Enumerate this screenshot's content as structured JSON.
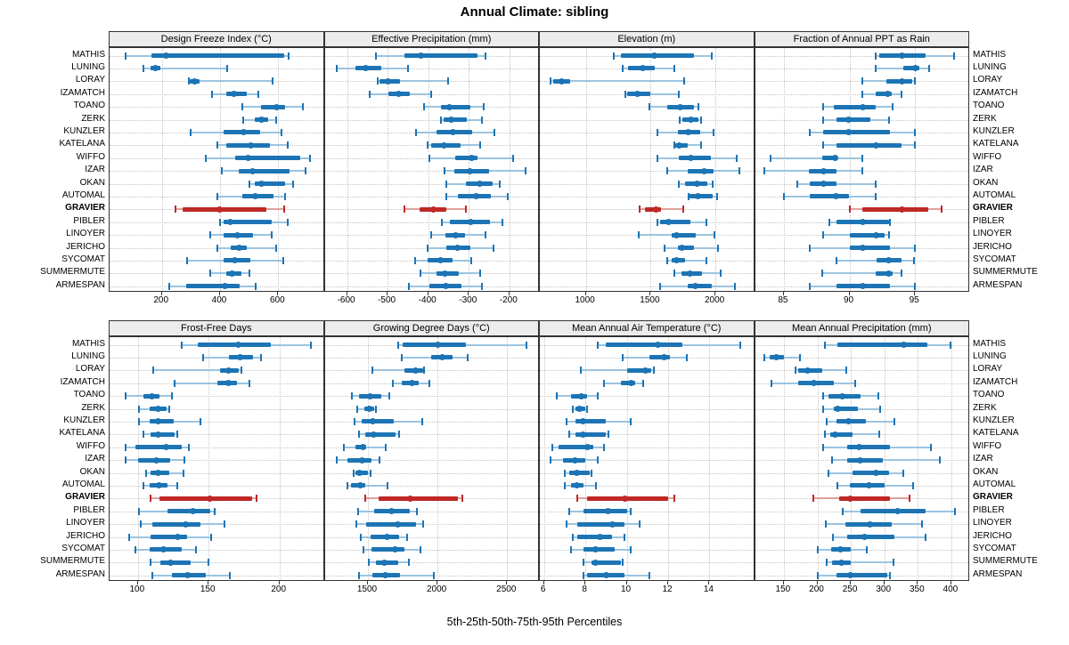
{
  "title": "Annual Climate: sibling",
  "caption": "5th-25th-50th-75th-95th Percentiles",
  "percentiles": [
    "5th",
    "25th",
    "50th",
    "75th",
    "95th"
  ],
  "stations": [
    "MATHIS",
    "LUNING",
    "LORAY",
    "IZAMATCH",
    "TOANO",
    "ZERK",
    "KUNZLER",
    "KATELANA",
    "WIFFO",
    "IZAR",
    "OKAN",
    "AUTOMAL",
    "GRAVIER",
    "PIBLER",
    "LINOYER",
    "JERICHO",
    "SYCOMAT",
    "SUMMERMUTE",
    "ARMESPAN"
  ],
  "highlight_station": "GRAVIER",
  "colors": {
    "series": "#1c74b4",
    "series_light": "#9cc4e0",
    "highlight": "#bf2826",
    "highlight_light": "#dfa09d",
    "grid": "#c4c4c4",
    "strip_bg": "#ececec",
    "border": "#333333"
  },
  "chart_data": [
    {
      "type": "dot-interval",
      "row": "top",
      "title": "Design Freeze Index (°C)",
      "ticks": [
        200,
        400,
        600
      ],
      "xlim": [
        20,
        760
      ],
      "values": [
        [
          75,
          165,
          215,
          620,
          635
        ],
        [
          135,
          160,
          178,
          195,
          425
        ],
        [
          293,
          297,
          311,
          331,
          580
        ],
        [
          372,
          420,
          446,
          491,
          531
        ],
        [
          475,
          542,
          594,
          624,
          685
        ],
        [
          478,
          518,
          542,
          564,
          594
        ],
        [
          298,
          412,
          481,
          538,
          612
        ],
        [
          392,
          422,
          505,
          572,
          632
        ],
        [
          352,
          451,
          496,
          675,
          710
        ],
        [
          407,
          463,
          513,
          640,
          693
        ],
        [
          500,
          518,
          543,
          624,
          651
        ],
        [
          392,
          475,
          520,
          584,
          622
        ],
        [
          248,
          271,
          397,
          558,
          621
        ],
        [
          400,
          412,
          435,
          579,
          632
        ],
        [
          365,
          412,
          460,
          513,
          577
        ],
        [
          390,
          437,
          466,
          493,
          594
        ],
        [
          286,
          412,
          451,
          503,
          616
        ],
        [
          367,
          422,
          442,
          473,
          501
        ],
        [
          225,
          283,
          417,
          468,
          523
        ]
      ]
    },
    {
      "type": "dot-interval",
      "row": "top",
      "title": "Effective Precipitation (mm)",
      "ticks": [
        -600,
        -500,
        -400,
        -300,
        -200
      ],
      "xlim": [
        -655,
        -125
      ],
      "values": [
        [
          -530,
          -458,
          -418,
          -278,
          -259
        ],
        [
          -625,
          -580,
          -555,
          -515,
          -450
        ],
        [
          -525,
          -521,
          -500,
          -470,
          -351
        ],
        [
          -545,
          -498,
          -473,
          -445,
          -393
        ],
        [
          -411,
          -369,
          -347,
          -295,
          -263
        ],
        [
          -369,
          -362,
          -343,
          -306,
          -267
        ],
        [
          -431,
          -380,
          -340,
          -291,
          -236
        ],
        [
          -402,
          -393,
          -360,
          -320,
          -273
        ],
        [
          -397,
          -333,
          -293,
          -278,
          -191
        ],
        [
          -360,
          -336,
          -298,
          -249,
          -160
        ],
        [
          -356,
          -307,
          -273,
          -242,
          -224
        ],
        [
          -356,
          -327,
          -282,
          -247,
          -204
        ],
        [
          -458,
          -422,
          -387,
          -356,
          -307
        ],
        [
          -367,
          -347,
          -296,
          -247,
          -218
        ],
        [
          -393,
          -358,
          -333,
          -309,
          -260
        ],
        [
          -402,
          -356,
          -329,
          -295,
          -240
        ],
        [
          -433,
          -402,
          -369,
          -340,
          -295
        ],
        [
          -420,
          -380,
          -358,
          -324,
          -273
        ],
        [
          -447,
          -398,
          -356,
          -317,
          -267
        ]
      ]
    },
    {
      "type": "dot-interval",
      "row": "top",
      "title": "Elevation (m)",
      "ticks": [
        1000,
        1500,
        2000
      ],
      "xlim": [
        645,
        2305
      ],
      "values": [
        [
          1215,
          1270,
          1525,
          1835,
          1970
        ],
        [
          1285,
          1325,
          1440,
          1535,
          1685
        ],
        [
          725,
          745,
          815,
          880,
          1760
        ],
        [
          1305,
          1320,
          1395,
          1495,
          1715
        ],
        [
          1490,
          1625,
          1730,
          1835,
          1865
        ],
        [
          1725,
          1745,
          1810,
          1870,
          1890
        ],
        [
          1555,
          1710,
          1790,
          1880,
          1985
        ],
        [
          1685,
          1690,
          1720,
          1785,
          1890
        ],
        [
          1555,
          1715,
          1810,
          1965,
          2165
        ],
        [
          1630,
          1785,
          1910,
          1985,
          2185
        ],
        [
          1715,
          1765,
          1855,
          1940,
          1975
        ],
        [
          1790,
          1800,
          1865,
          1975,
          2015
        ],
        [
          1412,
          1455,
          1540,
          1580,
          1750
        ],
        [
          1550,
          1575,
          1640,
          1810,
          1930
        ],
        [
          1410,
          1660,
          1700,
          1850,
          1990
        ],
        [
          1605,
          1710,
          1740,
          1835,
          2020
        ],
        [
          1625,
          1660,
          1700,
          1765,
          1930
        ],
        [
          1680,
          1740,
          1800,
          1895,
          2040
        ],
        [
          1575,
          1785,
          1845,
          1970,
          2150
        ]
      ]
    },
    {
      "type": "dot-interval",
      "row": "top",
      "title": "Fraction of Annual PPT as Rain",
      "ticks": [
        85,
        90,
        95
      ],
      "xlim": [
        82.8,
        99.2
      ],
      "values": [
        [
          92,
          92.3,
          94,
          95.8,
          98
        ],
        [
          92,
          94.1,
          95,
          95.3,
          96.1
        ],
        [
          91,
          92.8,
          94,
          94.8,
          95
        ],
        [
          91,
          92,
          92.9,
          93.2,
          94
        ],
        [
          88,
          88.8,
          91,
          92,
          93.3
        ],
        [
          88,
          89,
          89.9,
          91.6,
          93
        ],
        [
          87,
          88,
          89.9,
          93.1,
          95
        ],
        [
          88,
          89,
          92,
          94,
          95
        ],
        [
          84,
          87.9,
          88.9,
          89.1,
          91
        ],
        [
          83.5,
          86.9,
          88,
          89,
          91
        ],
        [
          86,
          87,
          88,
          89,
          92
        ],
        [
          85,
          87,
          89,
          90,
          92
        ],
        [
          90,
          91,
          94,
          96,
          97
        ],
        [
          88.5,
          89,
          91,
          93,
          93.1
        ],
        [
          88,
          90,
          92,
          92.7,
          93
        ],
        [
          87,
          90,
          91,
          93.1,
          95
        ],
        [
          89,
          92.1,
          93,
          94,
          94.9
        ],
        [
          87.9,
          92,
          93,
          93.3,
          94
        ],
        [
          87,
          89,
          91,
          93.1,
          95
        ]
      ]
    },
    {
      "type": "dot-interval",
      "row": "bottom",
      "title": "Frost-Free Days",
      "ticks": [
        100,
        150,
        200
      ],
      "xlim": [
        80,
        232
      ],
      "values": [
        [
          131,
          142,
          171,
          194,
          222
        ],
        [
          146,
          164,
          172,
          181,
          187
        ],
        [
          111,
          158,
          164,
          171,
          173
        ],
        [
          126,
          156,
          164,
          170,
          179
        ],
        [
          91,
          104,
          110,
          115,
          124
        ],
        [
          101,
          108,
          114,
          120,
          122
        ],
        [
          101,
          108,
          114,
          125,
          144
        ],
        [
          104,
          109,
          114,
          126,
          128
        ],
        [
          91,
          98,
          120,
          131,
          136
        ],
        [
          91,
          100,
          113,
          123,
          133
        ],
        [
          106,
          109,
          114,
          122,
          132
        ],
        [
          104,
          108,
          115,
          121,
          128
        ],
        [
          109,
          115,
          151,
          181,
          184
        ],
        [
          101,
          121,
          139,
          151,
          154
        ],
        [
          102,
          110,
          134,
          144,
          161
        ],
        [
          94,
          109,
          128,
          135,
          152
        ],
        [
          98,
          108,
          118,
          131,
          141
        ],
        [
          109,
          116,
          123,
          137,
          150
        ],
        [
          110,
          124,
          135,
          148,
          165
        ]
      ]
    },
    {
      "type": "dot-interval",
      "row": "bottom",
      "title": "Growing Degree Days (°C)",
      "ticks": [
        1500,
        2000,
        2500
      ],
      "xlim": [
        1190,
        2735
      ],
      "values": [
        [
          1716,
          1749,
          2004,
          2203,
          2636
        ],
        [
          1742,
          1955,
          2034,
          2106,
          2214
        ],
        [
          1532,
          1760,
          1840,
          1895,
          1905
        ],
        [
          1677,
          1742,
          1814,
          1868,
          1944
        ],
        [
          1388,
          1435,
          1518,
          1597,
          1651
        ],
        [
          1424,
          1474,
          1511,
          1545,
          1555
        ],
        [
          1403,
          1457,
          1537,
          1684,
          1890
        ],
        [
          1435,
          1478,
          1544,
          1700,
          1723
        ],
        [
          1327,
          1409,
          1463,
          1485,
          1630
        ],
        [
          1273,
          1353,
          1457,
          1526,
          1586
        ],
        [
          1396,
          1409,
          1440,
          1500,
          1521
        ],
        [
          1353,
          1381,
          1446,
          1478,
          1641
        ],
        [
          1478,
          1576,
          1803,
          2149,
          2175
        ],
        [
          1431,
          1547,
          1669,
          1803,
          1851
        ],
        [
          1418,
          1489,
          1716,
          1846,
          1894
        ],
        [
          1446,
          1521,
          1636,
          1727,
          1781
        ],
        [
          1468,
          1526,
          1695,
          1764,
          1879
        ],
        [
          1505,
          1560,
          1619,
          1716,
          1797
        ],
        [
          1435,
          1532,
          1625,
          1727,
          1972
        ]
      ]
    },
    {
      "type": "dot-interval",
      "row": "bottom",
      "title": "Mean Annual Air Temperature (°C)",
      "ticks": [
        6,
        8,
        10,
        12,
        14
      ],
      "xlim": [
        5.8,
        16.2
      ],
      "values": [
        [
          8.6,
          9.0,
          11.5,
          12.7,
          15.5
        ],
        [
          9.8,
          11.1,
          11.8,
          12.1,
          12.9
        ],
        [
          7.8,
          10.0,
          10.9,
          11.2,
          11.3
        ],
        [
          8.9,
          9.7,
          10.2,
          10.4,
          10.8
        ],
        [
          6.6,
          7.3,
          7.8,
          8.1,
          8.6
        ],
        [
          7.4,
          7.5,
          7.7,
          8.0,
          8.1
        ],
        [
          7.1,
          7.5,
          7.9,
          9.0,
          10.2
        ],
        [
          7.2,
          7.5,
          7.9,
          9.0,
          9.1
        ],
        [
          6.4,
          6.7,
          8.1,
          8.4,
          8.9
        ],
        [
          6.3,
          6.9,
          7.5,
          8.0,
          8.6
        ],
        [
          7.0,
          7.2,
          7.6,
          8.2,
          8.3
        ],
        [
          7.0,
          7.3,
          7.6,
          7.9,
          8.5
        ],
        [
          7.6,
          8.1,
          9.9,
          12.0,
          12.3
        ],
        [
          7.2,
          7.9,
          9.1,
          10.0,
          10.2
        ],
        [
          7.1,
          7.6,
          9.3,
          9.9,
          10.6
        ],
        [
          7.4,
          7.6,
          8.7,
          9.3,
          9.9
        ],
        [
          7.3,
          7.9,
          8.5,
          9.4,
          10.2
        ],
        [
          7.9,
          8.3,
          8.5,
          9.7,
          9.8
        ],
        [
          7.9,
          8.1,
          9.0,
          9.9,
          11.1
        ]
      ]
    },
    {
      "type": "dot-interval",
      "row": "bottom",
      "title": "Mean Annual Precipitation (mm)",
      "ticks": [
        150,
        200,
        250,
        300,
        350,
        400
      ],
      "xlim": [
        107,
        428
      ],
      "values": [
        [
          211,
          230,
          329,
          364,
          399
        ],
        [
          121,
          129,
          139,
          150,
          174
        ],
        [
          167,
          171,
          186,
          207,
          243
        ],
        [
          131,
          172,
          194,
          225,
          257
        ],
        [
          209,
          217,
          237,
          264,
          291
        ],
        [
          208,
          225,
          230,
          261,
          294
        ],
        [
          214,
          229,
          247,
          273,
          315
        ],
        [
          211,
          219,
          227,
          253,
          292
        ],
        [
          209,
          244,
          263,
          309,
          370
        ],
        [
          222,
          244,
          264,
          298,
          383
        ],
        [
          217,
          253,
          288,
          307,
          328
        ],
        [
          230,
          248,
          277,
          301,
          343
        ],
        [
          194,
          232,
          249,
          309,
          337
        ],
        [
          238,
          265,
          319,
          361,
          405
        ],
        [
          212,
          242,
          279,
          311,
          356
        ],
        [
          223,
          245,
          270,
          315,
          361
        ],
        [
          200,
          220,
          235,
          250,
          274
        ],
        [
          214,
          222,
          236,
          250,
          313
        ],
        [
          200,
          228,
          249,
          305,
          308
        ]
      ]
    }
  ]
}
